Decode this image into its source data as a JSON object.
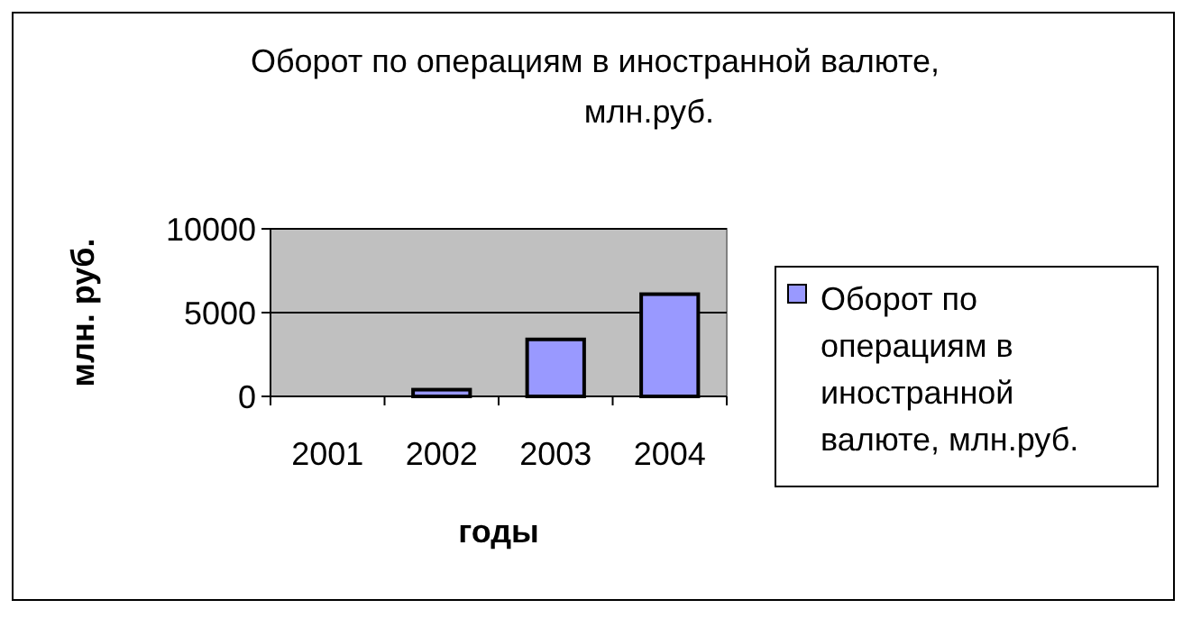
{
  "chart_data": {
    "type": "bar",
    "title": "Оборот по операциям в иностранной валюте, млн.руб.",
    "xlabel": "годы",
    "ylabel": "млн. руб.",
    "categories": [
      "2001",
      "2002",
      "2003",
      "2004"
    ],
    "series": [
      {
        "name": "Оборот по операциям в иностранной валюте, млн.руб.",
        "color": "#9999ff",
        "values": [
          0,
          400,
          3400,
          6100
        ]
      }
    ],
    "ylim": [
      0,
      10000
    ],
    "yticks": [
      0,
      5000,
      10000
    ],
    "grid": "y",
    "legend": "right"
  }
}
